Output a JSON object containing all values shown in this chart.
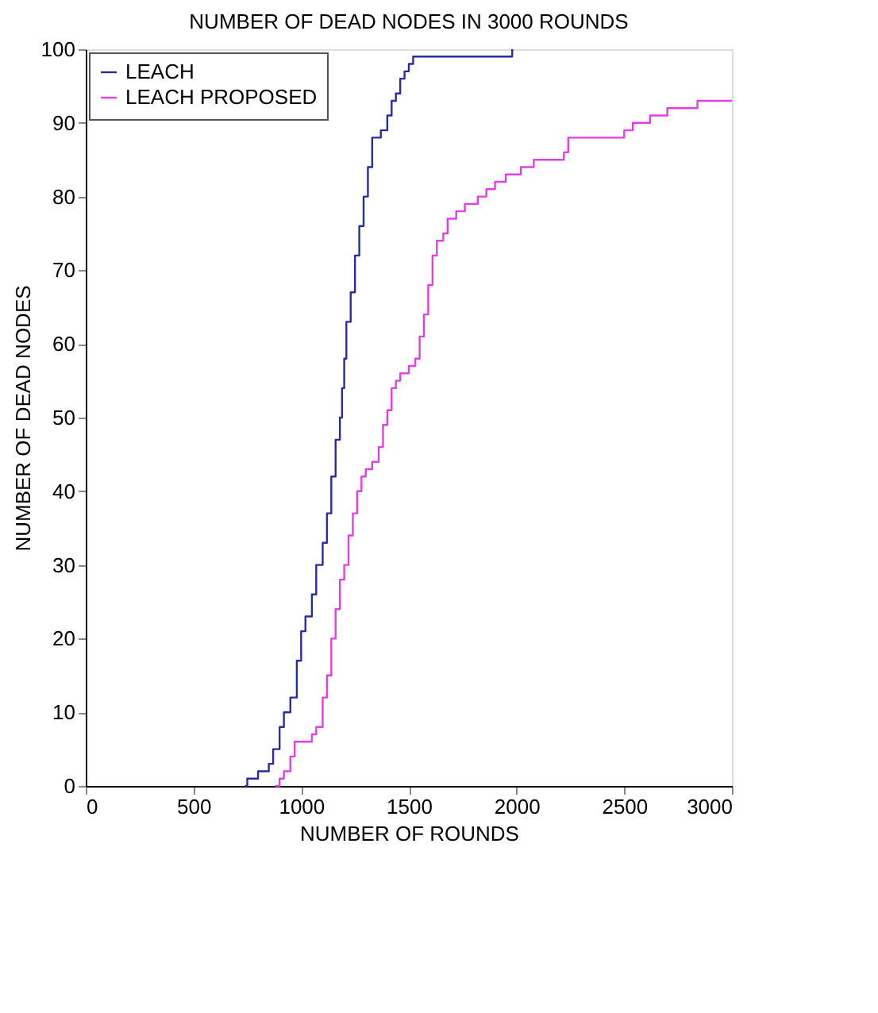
{
  "chart_data": {
    "type": "step",
    "title": "NUMBER OF DEAD NODES IN 3000 ROUNDS",
    "xlabel": "NUMBER OF ROUNDS",
    "ylabel": "NUMBER OF DEAD NODES",
    "xlim": [
      0,
      3000
    ],
    "xticks": [
      0,
      500,
      1000,
      1500,
      2000,
      2500,
      3000
    ],
    "ylim": [
      0,
      100
    ],
    "yticks": [
      0,
      10,
      20,
      30,
      40,
      50,
      60,
      70,
      80,
      90,
      100
    ],
    "grid": false,
    "legend": "top left",
    "series": [
      {
        "name": "LEACH",
        "color": "#2b2b9e",
        "x": [
          740,
          750,
          800,
          850,
          870,
          900,
          920,
          950,
          980,
          1000,
          1020,
          1050,
          1070,
          1100,
          1120,
          1140,
          1160,
          1180,
          1190,
          1200,
          1210,
          1230,
          1250,
          1270,
          1290,
          1310,
          1330,
          1370,
          1400,
          1420,
          1440,
          1460,
          1480,
          1500,
          1520,
          1960,
          1980
        ],
        "values": [
          0,
          1,
          2,
          3,
          5,
          8,
          10,
          12,
          17,
          21,
          23,
          26,
          30,
          33,
          37,
          42,
          47,
          50,
          54,
          58,
          63,
          67,
          72,
          76,
          80,
          84,
          88,
          89,
          91,
          93,
          94,
          96,
          97,
          98,
          99,
          99,
          100
        ]
      },
      {
        "name": "LEACH PROPOSED",
        "color": "#e040e0",
        "x": [
          880,
          900,
          920,
          950,
          970,
          1040,
          1050,
          1070,
          1100,
          1120,
          1140,
          1160,
          1180,
          1200,
          1220,
          1240,
          1260,
          1280,
          1300,
          1330,
          1360,
          1380,
          1400,
          1420,
          1440,
          1460,
          1500,
          1530,
          1550,
          1570,
          1590,
          1610,
          1630,
          1660,
          1680,
          1720,
          1760,
          1820,
          1860,
          1900,
          1950,
          2020,
          2080,
          2220,
          2240,
          2500,
          2540,
          2620,
          2700,
          2840,
          3000
        ],
        "values": [
          0,
          1,
          2,
          4,
          6,
          6,
          7,
          8,
          12,
          15,
          20,
          24,
          28,
          30,
          34,
          37,
          40,
          42,
          43,
          44,
          46,
          49,
          51,
          54,
          55,
          56,
          57,
          58,
          61,
          64,
          68,
          72,
          74,
          75,
          77,
          78,
          79,
          80,
          81,
          82,
          83,
          84,
          85,
          86,
          88,
          89,
          90,
          91,
          92,
          93,
          93
        ]
      }
    ]
  }
}
